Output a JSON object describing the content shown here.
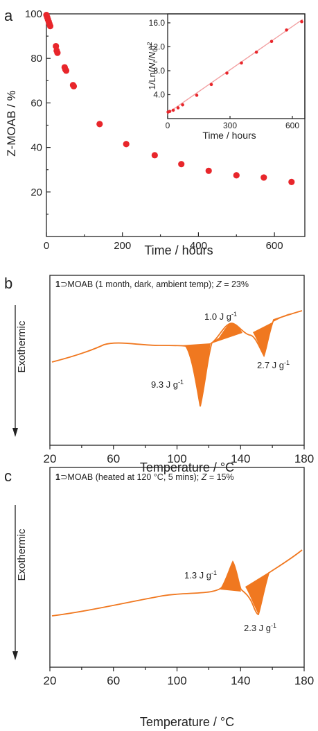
{
  "panel_a": {
    "letter": "a",
    "accent": "#e8262b",
    "chart_data": {
      "type": "scatter",
      "xlabel": "Time / hours",
      "ylabel": "Z-MOAB / %",
      "xlim": [
        0,
        680
      ],
      "ylim": [
        0,
        100
      ],
      "xticks": [
        0,
        200,
        400,
        600
      ],
      "yticks": [
        20,
        40,
        60,
        80,
        100
      ],
      "x": [
        0,
        2,
        4,
        6,
        8,
        10,
        25,
        27,
        29,
        48,
        50,
        52,
        70,
        72,
        140,
        210,
        285,
        355,
        427,
        500,
        572,
        645
      ],
      "y": [
        99.5,
        98.5,
        97.5,
        96.5,
        95.5,
        94.5,
        85.5,
        83.5,
        82.5,
        76,
        75,
        74.5,
        68,
        67.5,
        50.5,
        41.5,
        36.5,
        32.5,
        29.5,
        27.5,
        26.5,
        24.5
      ]
    },
    "inset": {
      "chart_data": {
        "type": "line",
        "xlabel": "Time / hours",
        "ylabel": "1/Ln(N_t/N_0)^2",
        "xlim": [
          0,
          660
        ],
        "ylim": [
          0,
          17.5
        ],
        "xticks": [
          0,
          300,
          600
        ],
        "yticks": [
          4.0,
          8.0,
          12.0,
          16.0
        ],
        "ytick_labels": [
          "4.0",
          "8.0",
          "12.0",
          "16.0"
        ],
        "x": [
          2,
          10,
          27,
          50,
          72,
          140,
          210,
          285,
          355,
          427,
          500,
          572,
          645
        ],
        "y": [
          1.1,
          1.2,
          1.4,
          1.8,
          2.3,
          3.9,
          5.7,
          7.6,
          9.3,
          11.1,
          12.9,
          14.8,
          16.2
        ],
        "fit": [
          [
            0,
            0.9
          ],
          [
            650,
            16.6
          ]
        ]
      }
    }
  },
  "panel_b": {
    "letter": "b",
    "accent": "#f07820",
    "title_bold": "1",
    "title_rest": "⊃MOAB (1 month, dark, ambient temp); ",
    "title_z": "Z",
    "title_end": " = 23%",
    "ylabel": "Exothermic",
    "chart_data": {
      "type": "line",
      "xlabel": "Temperature / °C",
      "xlim": [
        20,
        180
      ],
      "xticks": [
        20,
        60,
        100,
        140,
        180
      ],
      "annotations": [
        {
          "text": "9.3 J g",
          "sup": "-1"
        },
        {
          "text": "1.0 J g",
          "sup": "-1"
        },
        {
          "text": "2.7 J g",
          "sup": "-1"
        }
      ]
    }
  },
  "panel_c": {
    "letter": "c",
    "accent": "#f07820",
    "title_bold": "1",
    "title_rest": "⊃MOAB (heated at 120 °C, 5 mins); ",
    "title_z": "Z",
    "title_end": " = 15%",
    "ylabel": "Exothermic",
    "chart_data": {
      "type": "line",
      "xlabel": "Temperature / °C",
      "xlim": [
        20,
        180
      ],
      "xticks": [
        20,
        60,
        100,
        140,
        180
      ],
      "annotations": [
        {
          "text": "1.3 J g",
          "sup": "-1"
        },
        {
          "text": "2.3 J g",
          "sup": "-1"
        }
      ]
    }
  }
}
